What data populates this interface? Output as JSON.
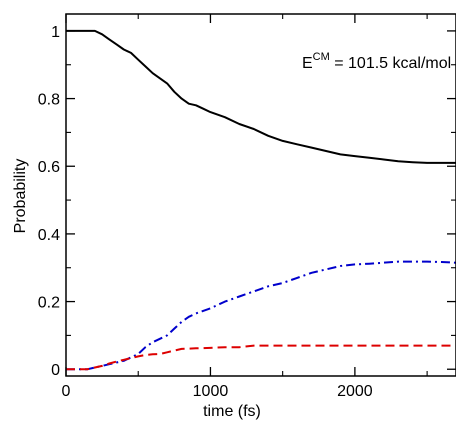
{
  "chart_data": {
    "type": "line",
    "title": "",
    "xlabel": "time (fs)",
    "ylabel": "Probability",
    "xlim": [
      0,
      2700
    ],
    "ylim": [
      -0.02,
      1.05
    ],
    "x_ticks": [
      {
        "value": 0,
        "label": "0"
      },
      {
        "value": 1000,
        "label": "1000"
      },
      {
        "value": 2000,
        "label": "2000"
      }
    ],
    "x_minor_ticks": [
      500,
      1500,
      2500
    ],
    "y_ticks": [
      {
        "value": 0,
        "label": "0"
      },
      {
        "value": 0.2,
        "label": "0.2"
      },
      {
        "value": 0.4,
        "label": "0.4"
      },
      {
        "value": 0.6,
        "label": "0.6"
      },
      {
        "value": 0.8,
        "label": "0.8"
      },
      {
        "value": 1.0,
        "label": "1"
      }
    ],
    "y_minor_ticks": [
      0.1,
      0.3,
      0.5,
      0.7,
      0.9
    ],
    "grid": false,
    "annotation": {
      "base": "E",
      "superscript": "CM",
      "rest": " = 101.5 kcal/mol"
    },
    "series": [
      {
        "color": "#000000",
        "style": "solid",
        "x": [
          0,
          100,
          200,
          250,
          300,
          350,
          400,
          450,
          500,
          550,
          600,
          650,
          700,
          750,
          800,
          850,
          900,
          950,
          1000,
          1100,
          1200,
          1300,
          1400,
          1500,
          1600,
          1700,
          1800,
          1900,
          2000,
          2100,
          2200,
          2300,
          2400,
          2500,
          2600,
          2700
        ],
        "y": [
          1.0,
          1.0,
          1.0,
          0.99,
          0.975,
          0.96,
          0.945,
          0.935,
          0.915,
          0.895,
          0.875,
          0.86,
          0.845,
          0.82,
          0.8,
          0.785,
          0.78,
          0.77,
          0.76,
          0.745,
          0.725,
          0.71,
          0.69,
          0.675,
          0.665,
          0.655,
          0.645,
          0.635,
          0.63,
          0.625,
          0.62,
          0.615,
          0.612,
          0.61,
          0.61,
          0.61
        ]
      },
      {
        "color": "#0000cc",
        "style": "dashdot",
        "x": [
          0,
          150,
          200,
          250,
          300,
          350,
          400,
          450,
          500,
          550,
          600,
          650,
          700,
          750,
          800,
          850,
          900,
          1000,
          1100,
          1200,
          1300,
          1400,
          1500,
          1600,
          1700,
          1800,
          1900,
          2000,
          2100,
          2200,
          2300,
          2400,
          2500,
          2600,
          2700
        ],
        "y": [
          0.0,
          0.0,
          0.005,
          0.01,
          0.015,
          0.02,
          0.025,
          0.035,
          0.045,
          0.065,
          0.08,
          0.09,
          0.1,
          0.12,
          0.14,
          0.155,
          0.165,
          0.18,
          0.2,
          0.215,
          0.23,
          0.245,
          0.255,
          0.27,
          0.285,
          0.295,
          0.305,
          0.31,
          0.312,
          0.315,
          0.318,
          0.318,
          0.318,
          0.317,
          0.315
        ]
      },
      {
        "color": "#dd0000",
        "style": "dashed",
        "x": [
          0,
          150,
          200,
          250,
          300,
          350,
          400,
          450,
          500,
          550,
          600,
          650,
          700,
          750,
          800,
          900,
          1000,
          1100,
          1200,
          1300,
          1400,
          1600,
          1800,
          2000,
          2200,
          2400,
          2600,
          2700
        ],
        "y": [
          0.0,
          0.0,
          0.005,
          0.01,
          0.017,
          0.023,
          0.028,
          0.033,
          0.038,
          0.042,
          0.044,
          0.045,
          0.05,
          0.055,
          0.06,
          0.062,
          0.063,
          0.065,
          0.065,
          0.07,
          0.07,
          0.07,
          0.07,
          0.07,
          0.07,
          0.07,
          0.07,
          0.07
        ]
      }
    ]
  }
}
